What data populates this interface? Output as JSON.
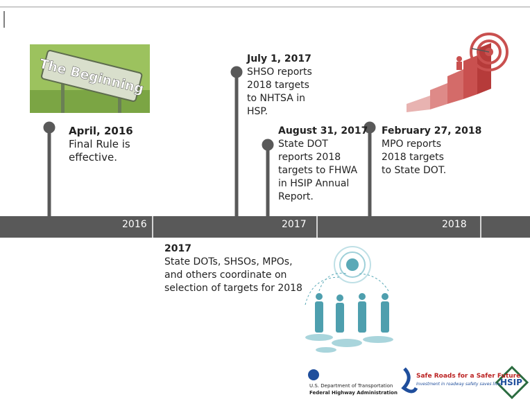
{
  "sign": "The Beginning",
  "events": [
    {
      "date": "April, 2016",
      "lines": [
        "Final Rule is",
        "effective."
      ]
    },
    {
      "date": "July 1, 2017",
      "lines": [
        "SHSO reports",
        "2018 targets",
        "to NHTSA in",
        "HSP."
      ]
    },
    {
      "date": "August 31, 2017",
      "lines": [
        "State DOT",
        "reports 2018",
        "targets to FHWA",
        "in HSIP Annual",
        "Report."
      ]
    },
    {
      "date": "February 27, 2018",
      "lines": [
        "MPO reports",
        "2018 targets",
        "to State DOT."
      ]
    }
  ],
  "years": [
    "2016",
    "2017",
    "2018"
  ],
  "coordination": {
    "date": "2017",
    "lines": [
      "State DOTs, SHSOs, MPOs,",
      "and others coordinate on",
      "selection of targets for 2018"
    ]
  },
  "logos": {
    "dot_line1": "U.S. Department of Transportation",
    "dot_line2": "Federal Highway Administration",
    "safe_roads": "Safe Roads for a Safer Future",
    "safe_roads_tagline": "Investment in roadway safety saves lives",
    "hsip": "HSIP"
  }
}
